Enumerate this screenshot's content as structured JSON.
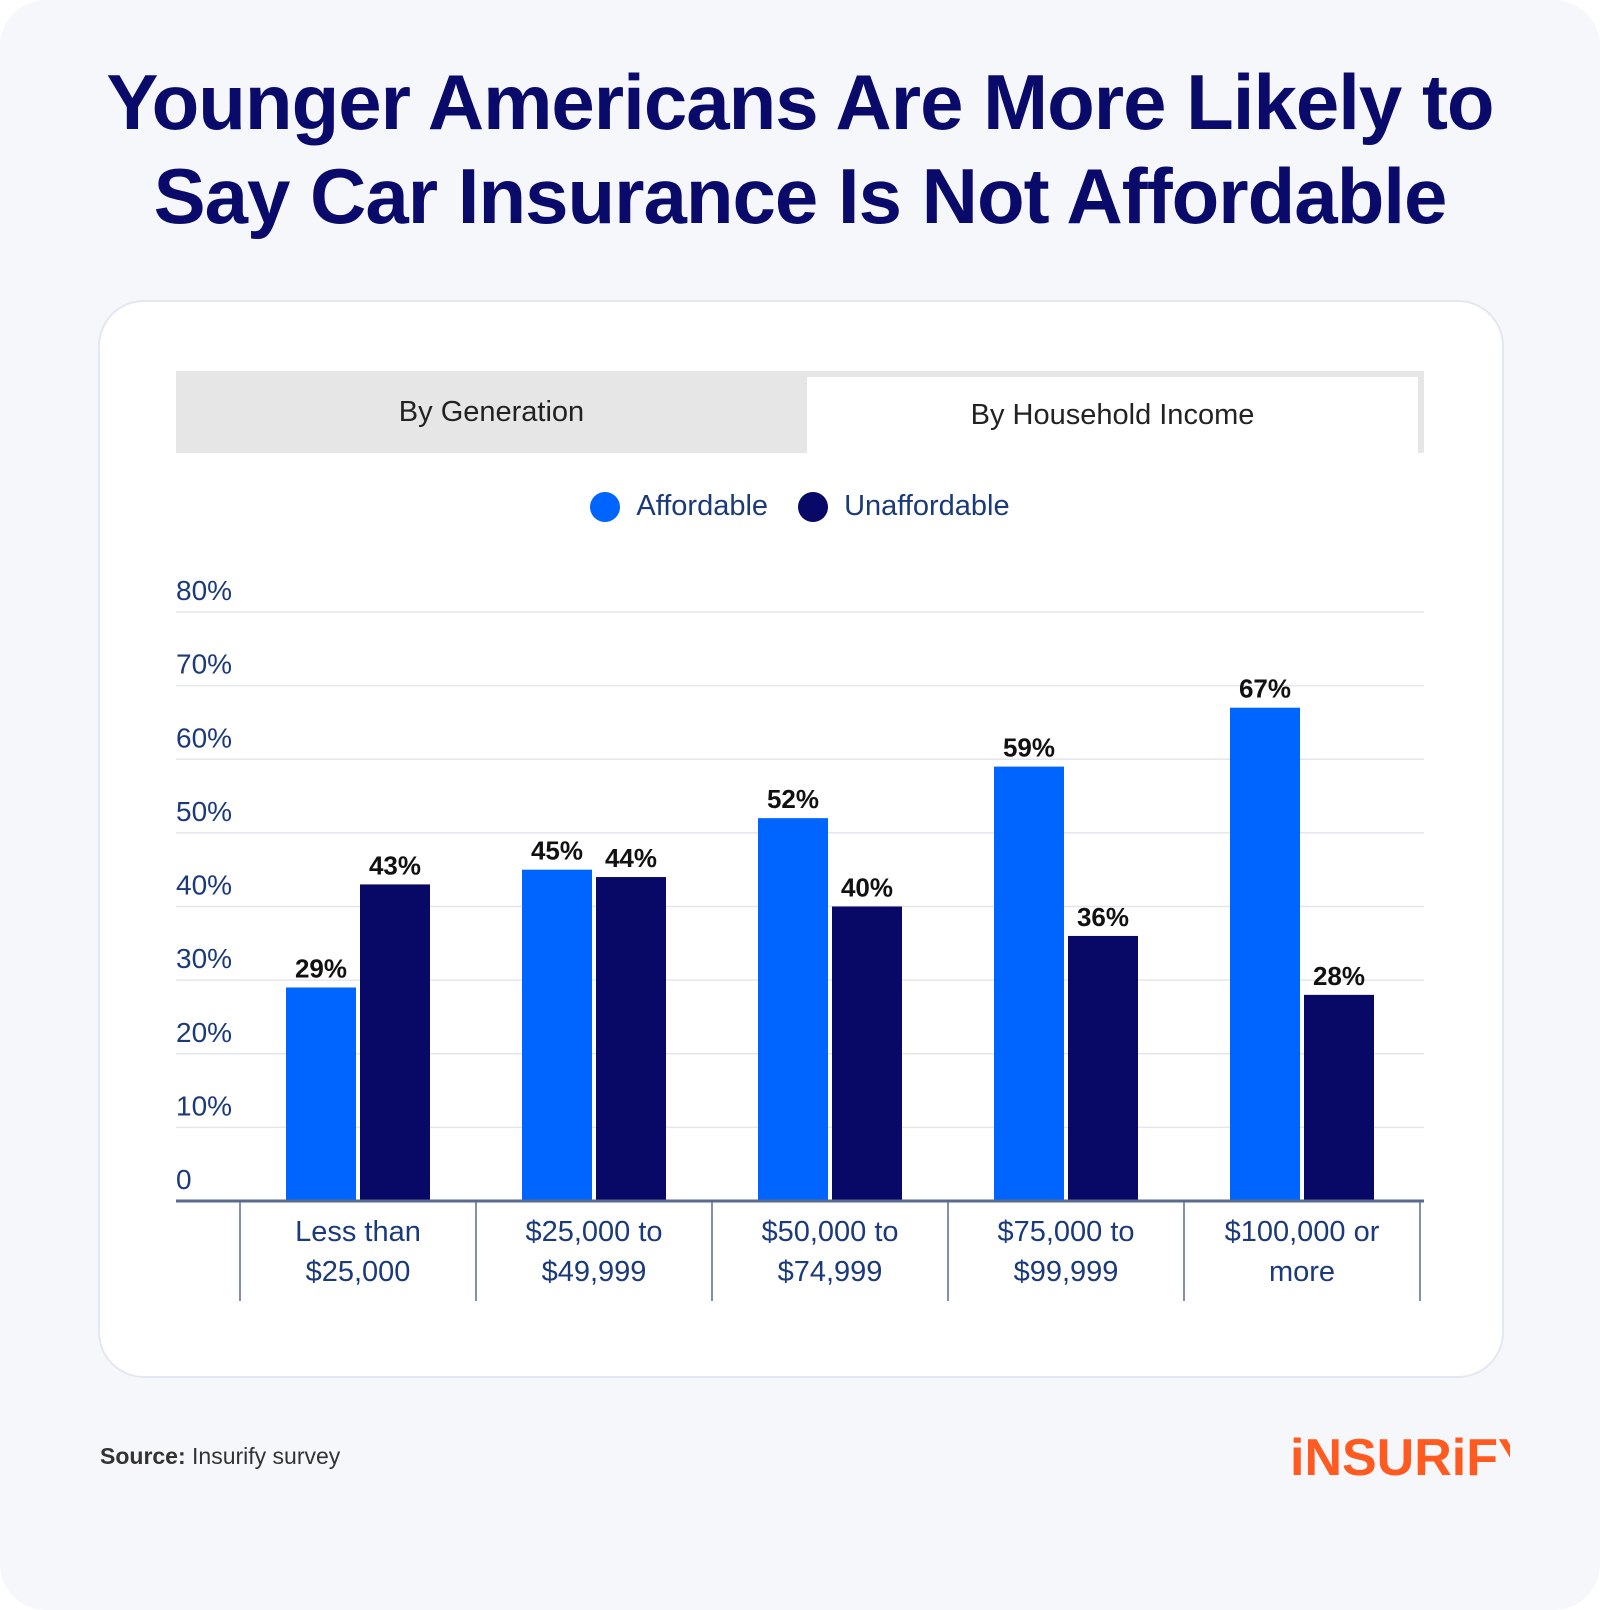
{
  "title": {
    "line1": "Younger Americans Are More Likely to",
    "line2": "Say Car Insurance Is Not Affordable"
  },
  "tabs": [
    {
      "label": "By Generation",
      "active": false
    },
    {
      "label": "By Household Income",
      "active": true
    }
  ],
  "source": {
    "label": "Source:",
    "text": "Insurify survey"
  },
  "logo": {
    "text": "iNSURiFY",
    "color": "#ff5a1f"
  },
  "colors": {
    "affordable": "#0064ff",
    "unaffordable": "#080866",
    "axis_text": "#1b3a7a"
  },
  "chart_data": {
    "type": "bar",
    "title": "",
    "xlabel": "",
    "ylabel": "",
    "categories": [
      [
        "Less than",
        "$25,000"
      ],
      [
        "$25,000 to",
        "$49,999"
      ],
      [
        "$50,000 to",
        "$74,999"
      ],
      [
        "$75,000 to",
        "$99,999"
      ],
      [
        "$100,000 or",
        "more"
      ]
    ],
    "series": [
      {
        "name": "Affordable",
        "values": [
          29,
          45,
          52,
          59,
          67
        ],
        "labels": [
          "29%",
          "45%",
          "52%",
          "59%",
          "67%"
        ]
      },
      {
        "name": "Unaffordable",
        "values": [
          43,
          44,
          40,
          36,
          28
        ],
        "labels": [
          "43%",
          "44%",
          "40%",
          "36%",
          "28%"
        ]
      }
    ],
    "ylim": [
      0,
      80
    ],
    "yticks": [
      0,
      10,
      20,
      30,
      40,
      50,
      60,
      70,
      80
    ],
    "ytick_labels": [
      "0",
      "10%",
      "20%",
      "30%",
      "40%",
      "50%",
      "60%",
      "70%",
      "80%"
    ],
    "grid": true,
    "legend_position": "top-center"
  }
}
